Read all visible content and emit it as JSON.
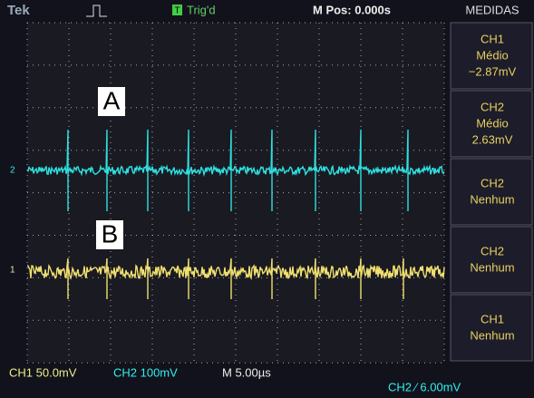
{
  "header": {
    "brand": "Tek",
    "trigger_icon": "T",
    "trigger_status": "Trig'd",
    "position": "M Pos: 0.000s"
  },
  "menu": {
    "title": "MEDIDAS",
    "items": [
      {
        "source": "CH1",
        "type": "Médio",
        "value": "−2.87mV"
      },
      {
        "source": "CH2",
        "type": "Médio",
        "value": "2.63mV"
      },
      {
        "source": "CH2",
        "type": "Nenhum"
      },
      {
        "source": "CH2",
        "type": "Nenhum"
      },
      {
        "source": "CH1",
        "type": "Nenhum"
      }
    ]
  },
  "footer": {
    "ch1_scale": "CH1 50.0mV",
    "ch2_scale": "CH2 100mV",
    "timebase": "M 5.00µs",
    "trigger": "CH2 ⁄ 6.00mV"
  },
  "labels": [
    "A",
    "B"
  ],
  "markers": [
    "2",
    "1"
  ]
}
